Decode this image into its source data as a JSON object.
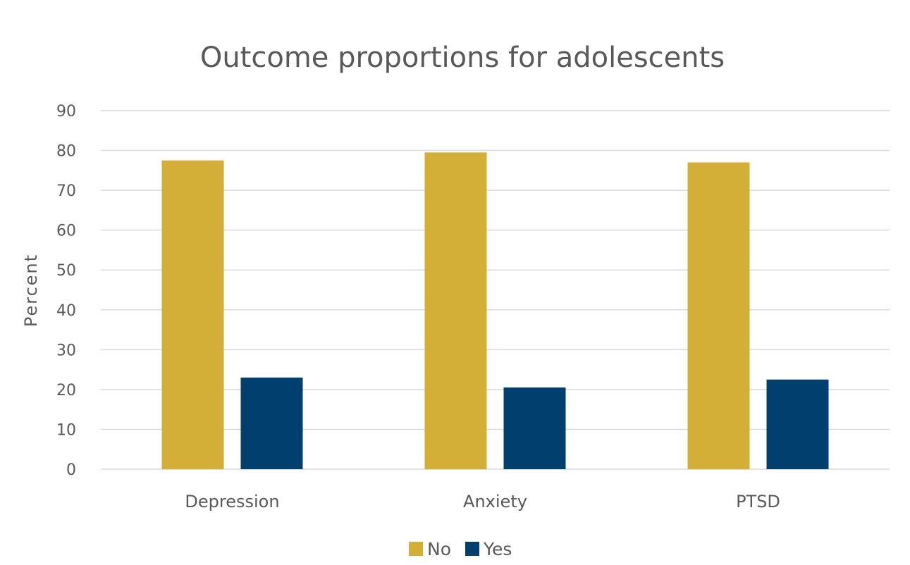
{
  "chart_data": {
    "type": "bar",
    "title": "Outcome proportions for adolescents",
    "xlabel": "",
    "ylabel": "Percent",
    "ylim": [
      0,
      90
    ],
    "yticks": [
      0,
      10,
      20,
      30,
      40,
      50,
      60,
      70,
      80,
      90
    ],
    "categories": [
      "Depression",
      "Anxiety",
      "PTSD"
    ],
    "series": [
      {
        "name": "No",
        "color": "#d4af37",
        "values": [
          77.5,
          79.5,
          77
        ]
      },
      {
        "name": "Yes",
        "color": "#003f6e",
        "values": [
          23,
          20.5,
          22.5
        ]
      }
    ],
    "grid": true,
    "legend_position": "bottom"
  }
}
